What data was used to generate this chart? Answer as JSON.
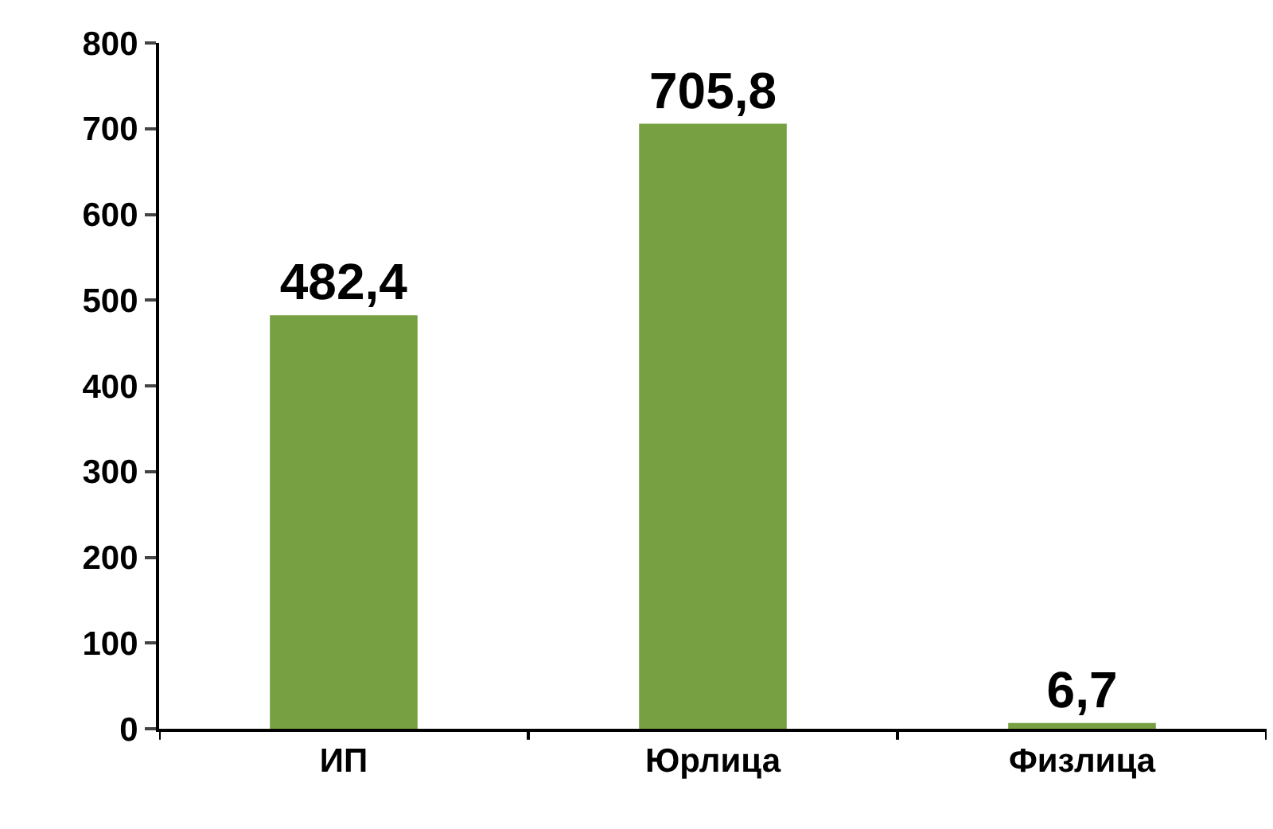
{
  "chart_data": {
    "type": "bar",
    "categories": [
      "ИП",
      "Юрлица",
      "Физлица"
    ],
    "values": [
      482.4,
      705.8,
      6.7
    ],
    "value_labels": [
      "482,4",
      "705,8",
      "6,7"
    ],
    "color": "#77a043",
    "ylim": [
      0,
      800
    ],
    "yticks": [
      0,
      100,
      200,
      300,
      400,
      500,
      600,
      700,
      800
    ]
  }
}
